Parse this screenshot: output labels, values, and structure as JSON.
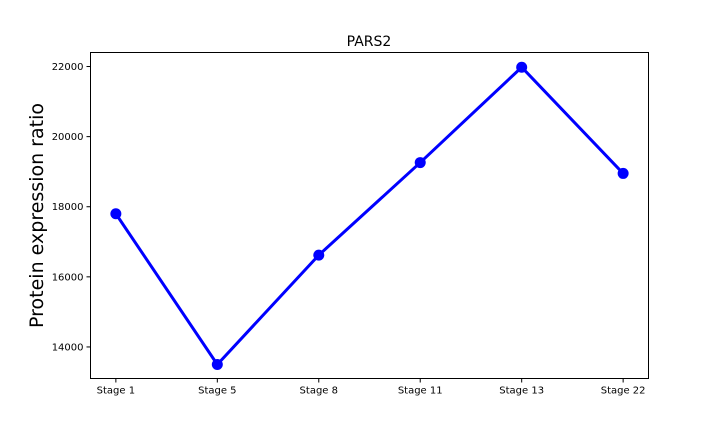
{
  "chart_data": {
    "type": "line",
    "title": "PARS2",
    "xlabel": "",
    "ylabel": "Protein expression ratio",
    "categories": [
      "Stage 1",
      "Stage 5",
      "Stage 8",
      "Stage 11",
      "Stage 13",
      "Stage 22"
    ],
    "series": [
      {
        "values": [
          17800,
          13500,
          16620,
          19260,
          21980,
          18950
        ],
        "color": "#0000ff",
        "marker": "circle"
      }
    ],
    "ylim": [
      13100,
      22400
    ],
    "yticks": [
      14000,
      16000,
      18000,
      20000,
      22000
    ],
    "ytick_labels": [
      "14000",
      "16000",
      "18000",
      "20000",
      "22000"
    ],
    "grid": false,
    "legend": "none"
  }
}
